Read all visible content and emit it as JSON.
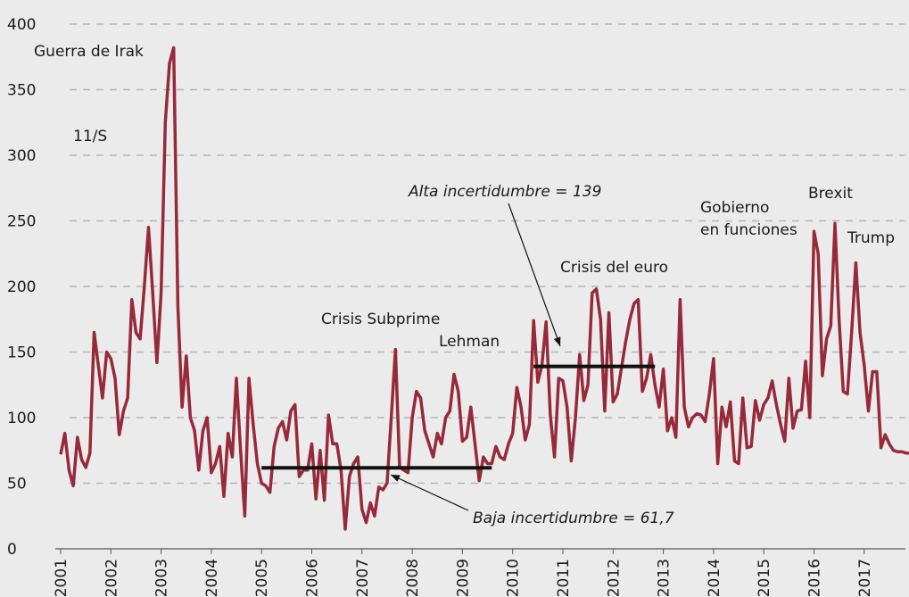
{
  "chart_data": {
    "type": "line",
    "categories": [
      "2001",
      null,
      null,
      null,
      null,
      null,
      null,
      null,
      null,
      null,
      null,
      null,
      "2002",
      null,
      null,
      null,
      null,
      null,
      null,
      null,
      null,
      null,
      null,
      null,
      "2003",
      null,
      null,
      null,
      null,
      null,
      null,
      null,
      null,
      null,
      null,
      null,
      "2004",
      null,
      null,
      null,
      null,
      null,
      null,
      null,
      null,
      null,
      null,
      null,
      "2005",
      null,
      null,
      null,
      null,
      null,
      null,
      null,
      null,
      null,
      null,
      null,
      "2006",
      null,
      null,
      null,
      null,
      null,
      null,
      null,
      null,
      null,
      null,
      null,
      "2007",
      null,
      null,
      null,
      null,
      null,
      null,
      null,
      null,
      null,
      null,
      null,
      "2008",
      null,
      null,
      null,
      null,
      null,
      null,
      null,
      null,
      null,
      null,
      null,
      "2009",
      null,
      null,
      null,
      null,
      null,
      null,
      null,
      null,
      null,
      null,
      null,
      "2010",
      null,
      null,
      null,
      null,
      null,
      null,
      null,
      null,
      null,
      null,
      null,
      "2011",
      null,
      null,
      null,
      null,
      null,
      null,
      null,
      null,
      null,
      null,
      null,
      "2012",
      null,
      null,
      null,
      null,
      null,
      null,
      null,
      null,
      null,
      null,
      null,
      "2013",
      null,
      null,
      null,
      null,
      null,
      null,
      null,
      null,
      null,
      null,
      null,
      "2014",
      null,
      null,
      null,
      null,
      null,
      null,
      null,
      null,
      null,
      null,
      null,
      "2015",
      null,
      null,
      null,
      null,
      null,
      null,
      null,
      null,
      null,
      null,
      null,
      "2016",
      null,
      null,
      null,
      null,
      null,
      null,
      null,
      null,
      null,
      null,
      null,
      "2017",
      null,
      null,
      null,
      null,
      null,
      null,
      null,
      null,
      null,
      null,
      null
    ],
    "series": [
      {
        "color": "#962a3a",
        "values": [
          72,
          88,
          60,
          48,
          85,
          68,
          62,
          73,
          165,
          140,
          115,
          150,
          145,
          130,
          87,
          105,
          115,
          190,
          165,
          160,
          200,
          245,
          195,
          142,
          195,
          325,
          370,
          382,
          185,
          108,
          147,
          100,
          90,
          60,
          90,
          100,
          58,
          65,
          78,
          40,
          88,
          70,
          130,
          75,
          25,
          130,
          95,
          65,
          50,
          48,
          43,
          78,
          92,
          97,
          83,
          105,
          110,
          55,
          60,
          60,
          80,
          38,
          75,
          37,
          102,
          80,
          80,
          60,
          15,
          55,
          65,
          70,
          30,
          20,
          35,
          25,
          47,
          45,
          50,
          100,
          152,
          62,
          60,
          58,
          100,
          120,
          115,
          90,
          80,
          70,
          88,
          80,
          100,
          105,
          133,
          120,
          82,
          85,
          108,
          80,
          52,
          70,
          65,
          65,
          78,
          70,
          68,
          80,
          88,
          123,
          108,
          83,
          95,
          174,
          127,
          140,
          173,
          102,
          70,
          130,
          128,
          108,
          67,
          100,
          148,
          113,
          125,
          195,
          198,
          175,
          105,
          180,
          112,
          118,
          138,
          158,
          175,
          187,
          190,
          120,
          130,
          148,
          125,
          108,
          137,
          90,
          100,
          85,
          190,
          108,
          93,
          100,
          103,
          102,
          97,
          118,
          145,
          65,
          108,
          93,
          112,
          67,
          65,
          115,
          77,
          78,
          113,
          98,
          110,
          115,
          128,
          110,
          95,
          82,
          130,
          92,
          105,
          106,
          143,
          100,
          242,
          225,
          132,
          160,
          170,
          248,
          175,
          120,
          118,
          165,
          218,
          165,
          140,
          105,
          135,
          135,
          77,
          87,
          80,
          75,
          74,
          74,
          73,
          73
        ]
      }
    ],
    "reference_lines": [
      {
        "value": 61.7,
        "label": "Baja incertidumbre = 61,7"
      },
      {
        "value": 139,
        "label": "Alta incertidumbre = 139"
      }
    ],
    "annotations": [
      "Guerra de Irak",
      "11/S",
      "Crisis Subprime",
      "Lehman",
      "Crisis del euro",
      "Gobierno",
      "en funciones",
      "Brexit",
      "Trump"
    ],
    "ylim": [
      0,
      400
    ],
    "yticks": [
      0,
      50,
      100,
      150,
      200,
      250,
      300,
      350,
      400
    ],
    "grid": true
  }
}
